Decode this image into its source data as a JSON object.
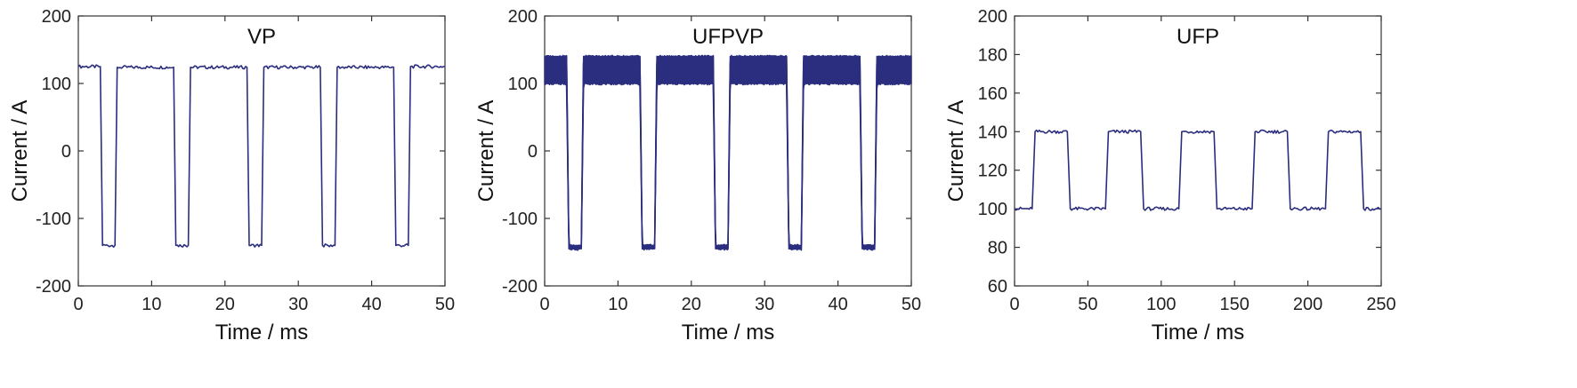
{
  "chart_data": [
    {
      "type": "line",
      "title": "VP",
      "xlabel": "Time / ms",
      "ylabel": "Current / A",
      "xlim": [
        0,
        50
      ],
      "ylim": [
        -200,
        200
      ],
      "xticks": [
        0,
        10,
        20,
        30,
        40,
        50
      ],
      "yticks": [
        -200,
        -100,
        0,
        100,
        200
      ],
      "grid": false,
      "legend": "none",
      "color": "#2b2e7e",
      "series": [
        {
          "x": [
            0,
            3.0,
            3.3,
            5.0,
            5.3,
            13.0,
            13.3,
            15.0,
            15.3,
            23.0,
            23.3,
            25.0,
            25.3,
            33.0,
            33.3,
            35.0,
            35.3,
            43.0,
            43.3,
            45.0,
            45.3,
            50
          ],
          "y": [
            125,
            125,
            -140,
            -140,
            124,
            124,
            -140,
            -140,
            124,
            124,
            -140,
            -140,
            124,
            124,
            -140,
            -140,
            124,
            124,
            -140,
            -140,
            125,
            125
          ]
        }
      ]
    },
    {
      "type": "line",
      "title": "UFPVP",
      "xlabel": "Time / ms",
      "ylabel": "Current / A",
      "xlim": [
        0,
        50
      ],
      "ylim": [
        -200,
        200
      ],
      "xticks": [
        0,
        10,
        20,
        30,
        40,
        50
      ],
      "yticks": [
        -200,
        -100,
        0,
        100,
        200
      ],
      "grid": false,
      "legend": "none",
      "color": "#2b2e7e",
      "series": [
        {
          "x": [
            0,
            3.0,
            3.3,
            5.0,
            5.3,
            13.0,
            13.3,
            15.0,
            15.3,
            23.0,
            23.3,
            25.0,
            25.3,
            33.0,
            33.3,
            35.0,
            35.3,
            43.0,
            43.3,
            45.0,
            45.3,
            50
          ],
          "y_high": [
            140,
            140,
            -140,
            -140,
            140,
            140,
            -140,
            -140,
            140,
            140,
            -140,
            -140,
            140,
            140,
            -140,
            -140,
            140,
            140,
            -140,
            -140,
            140,
            140
          ],
          "y_low": [
            100,
            100,
            -145,
            -145,
            100,
            100,
            -145,
            -145,
            100,
            100,
            -145,
            -145,
            100,
            100,
            -145,
            -145,
            100,
            100,
            -145,
            -145,
            100,
            100
          ]
        }
      ]
    },
    {
      "type": "line",
      "title": "UFP",
      "xlabel": "Time / ms",
      "ylabel": "Current / A",
      "xlim": [
        0,
        250
      ],
      "ylim": [
        60,
        200
      ],
      "xticks": [
        0,
        50,
        100,
        150,
        200,
        250
      ],
      "yticks": [
        60,
        80,
        100,
        120,
        140,
        160,
        180,
        200
      ],
      "grid": false,
      "legend": "none",
      "color": "#2b2e7e",
      "series": [
        {
          "x": [
            0,
            12,
            14,
            36,
            38,
            62,
            64,
            86,
            88,
            112,
            114,
            136,
            138,
            162,
            164,
            186,
            188,
            212,
            214,
            236,
            238,
            250
          ],
          "y": [
            100,
            100,
            140,
            140,
            100,
            100,
            140,
            140,
            100,
            100,
            140,
            140,
            100,
            100,
            140,
            140,
            100,
            100,
            140,
            140,
            100,
            100
          ]
        }
      ]
    }
  ]
}
